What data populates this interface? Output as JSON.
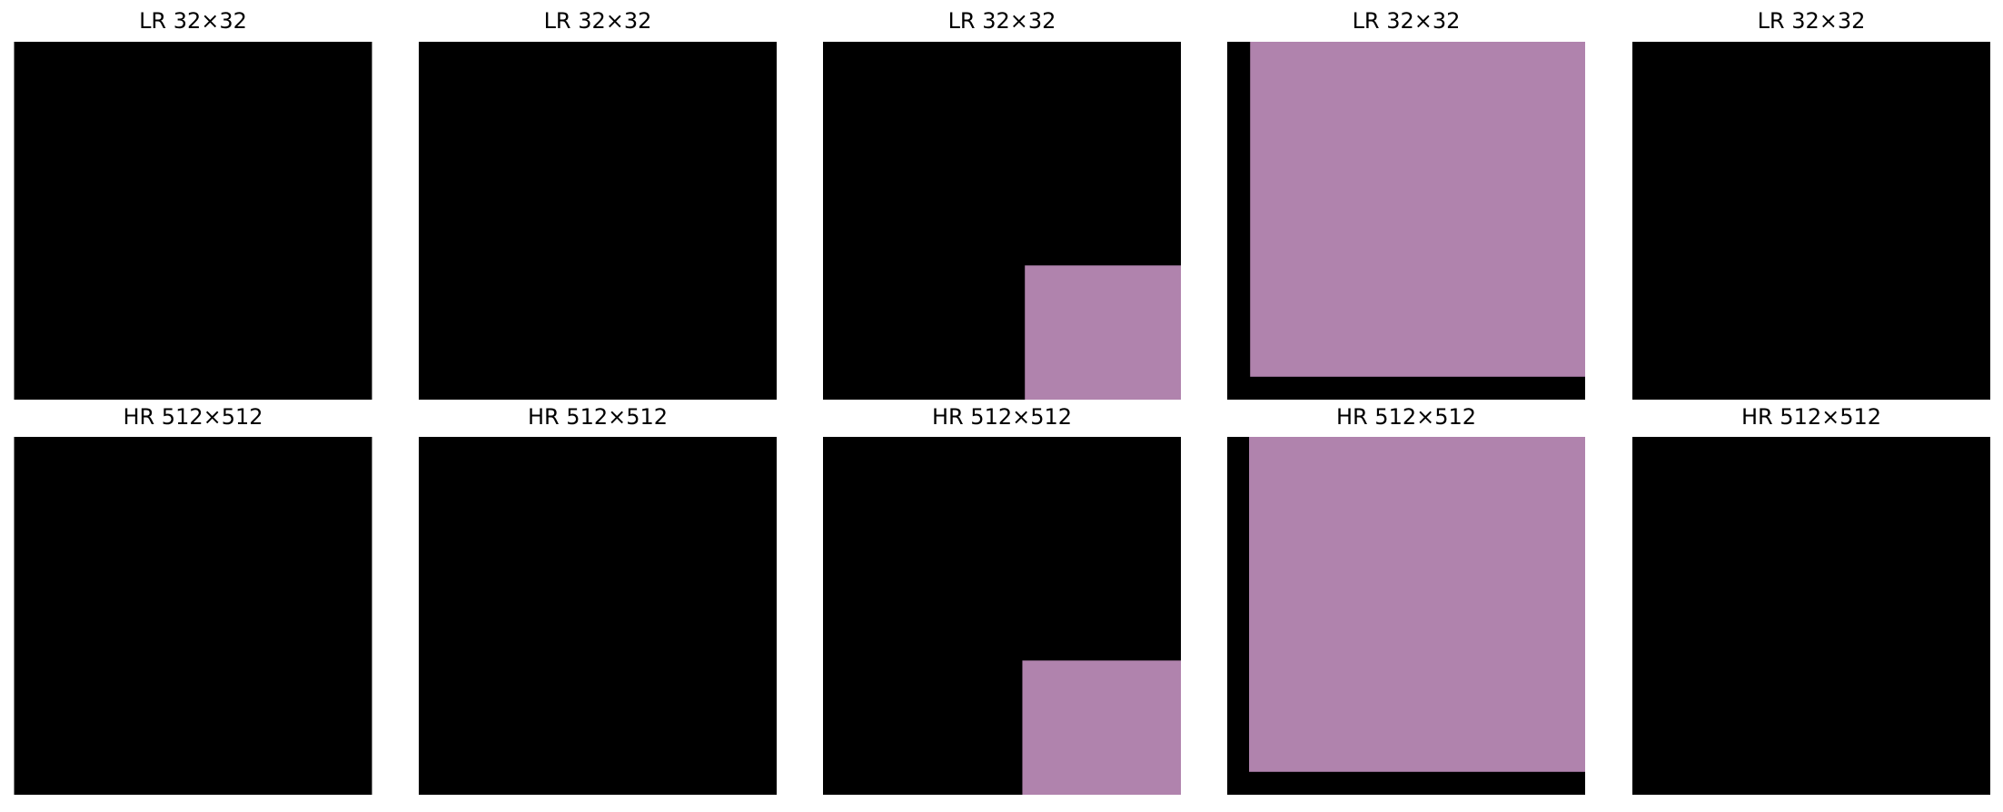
{
  "panels": [
    {
      "lr_title": "LR 32×32",
      "hr_title": "HR 512×512"
    },
    {
      "lr_title": "LR 32×32",
      "hr_title": "HR 512×512"
    },
    {
      "lr_title": "LR 32×32",
      "hr_title": "HR 512×512"
    },
    {
      "lr_title": "LR 32×32",
      "hr_title": "HR 512×512"
    },
    {
      "lr_title": "LR 32×32",
      "hr_title": "HR 512×512"
    }
  ]
}
